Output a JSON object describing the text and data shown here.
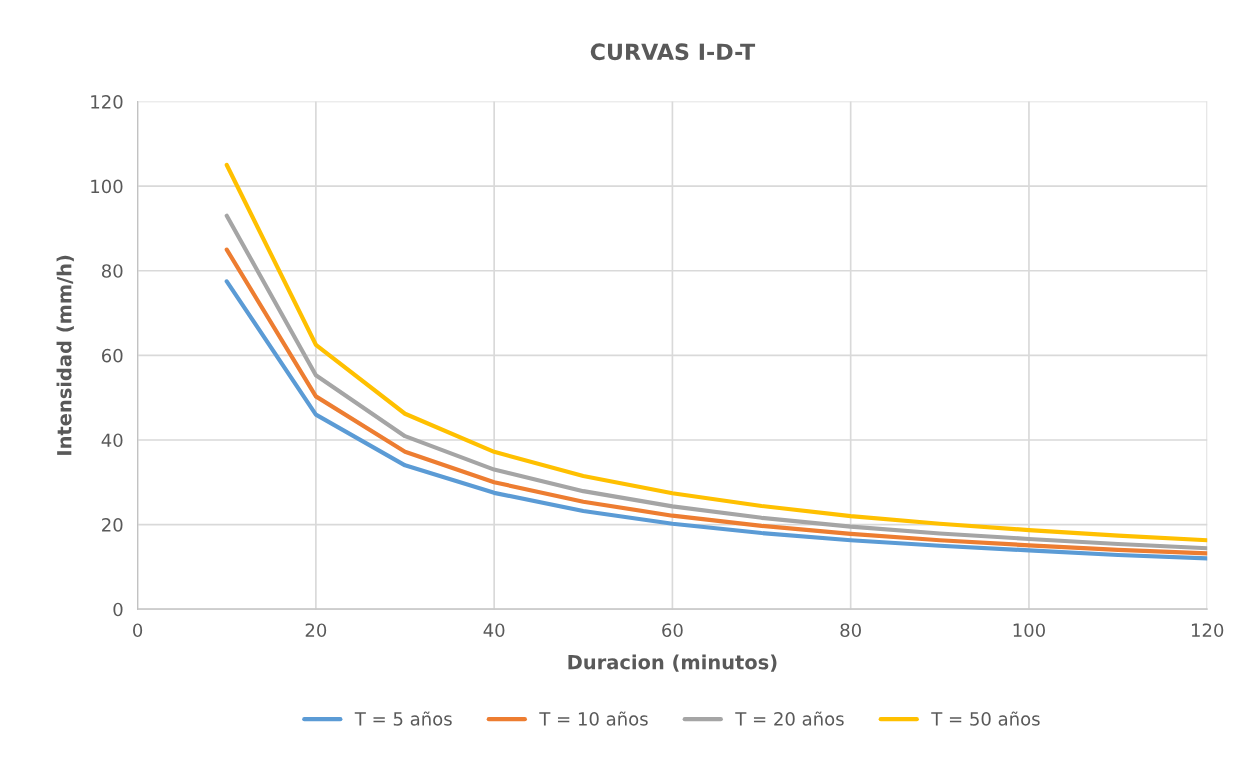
{
  "chart_data": {
    "type": "line",
    "title": "CURVAS I-D-T",
    "xlabel": "Duracion (minutos)",
    "ylabel": "Intensidad (mm/h)",
    "x": [
      10,
      20,
      30,
      40,
      50,
      60,
      70,
      80,
      90,
      100,
      110,
      120
    ],
    "series": [
      {
        "name": "T = 5 años",
        "color": "#5b9bd5",
        "values": [
          77.5,
          46,
          34,
          27.5,
          23.2,
          20.2,
          18,
          16.3,
          15,
          13.9,
          12.8,
          12
        ]
      },
      {
        "name": "T = 10 años",
        "color": "#ed7d31",
        "values": [
          85,
          50.3,
          37.2,
          30,
          25.4,
          22.1,
          19.7,
          17.8,
          16.3,
          15.1,
          14,
          13.2
        ]
      },
      {
        "name": "T = 20 años",
        "color": "#a5a5a5",
        "values": [
          93,
          55.3,
          40.9,
          33,
          27.9,
          24.3,
          21.6,
          19.5,
          17.9,
          16.6,
          15.4,
          14.4
        ]
      },
      {
        "name": "T = 50 años",
        "color": "#ffc000",
        "values": [
          105,
          62.5,
          46.2,
          37.2,
          31.5,
          27.4,
          24.4,
          22,
          20.2,
          18.7,
          17.4,
          16.3
        ]
      }
    ],
    "xlim": [
      0,
      120
    ],
    "xticks": [
      0,
      20,
      40,
      60,
      80,
      100,
      120
    ],
    "ylim": [
      0,
      120
    ],
    "yticks": [
      0,
      20,
      40,
      60,
      80,
      100,
      120
    ],
    "grid": true,
    "legend": "bottom",
    "marker": "none",
    "line_style": "solid"
  }
}
